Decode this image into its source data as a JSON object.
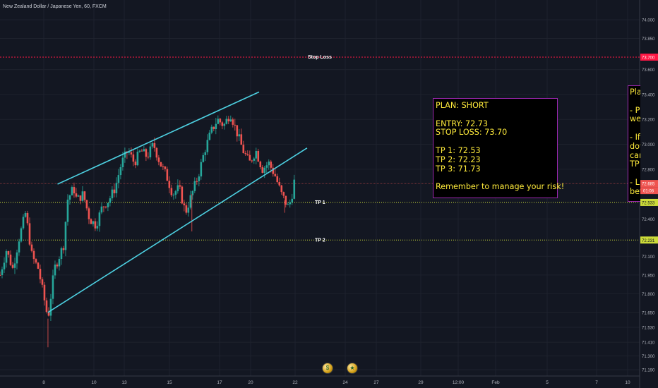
{
  "symbol_title": "New Zealand Dollar / Japanese Yen, 60, FXCM",
  "plan_text": {
    "lines": [
      "PLAN: SHORT",
      "",
      "ENTRY: 72.73",
      "STOP LOSS: 73.70",
      "",
      "TP 1: 72.53",
      "TP 2: 72.23",
      "TP 3: 71.73",
      "",
      "Remember to manage your risk!"
    ]
  },
  "plan_text_right": {
    "lines": [
      "Pla",
      "",
      "- P",
      "we",
      "",
      "- If",
      "dov",
      "car",
      "TP",
      "",
      "- L",
      "bef"
    ]
  },
  "event_icons": [
    "earnings-icon",
    "news-icon"
  ],
  "colors": {
    "background": "#131722",
    "up_candle": "#26a69a",
    "down_candle": "#ef5350",
    "trendline": "#4dd0e1",
    "stop_loss_line": "#ff1744",
    "tp_line": "#cddc39",
    "current_price_line": "#ef5350",
    "plan_text": "#ffeb3b",
    "plan_border": "#9c27b0"
  },
  "chart_data": {
    "type": "candlestick",
    "title": "New Zealand Dollar / Japanese Yen, 60, FXCM",
    "ylim": [
      71.19,
      74.0
    ],
    "y_ticks": [
      "74.000",
      "73.850",
      "73.700",
      "73.600",
      "73.400",
      "73.200",
      "73.000",
      "72.800",
      "72.685",
      "72.533",
      "72.400",
      "72.231",
      "72.100",
      "71.950",
      "71.800",
      "71.650",
      "71.530",
      "71.410",
      "71.300",
      "71.190"
    ],
    "x_ticks": [
      "8",
      "10",
      "13",
      "15",
      "17",
      "20",
      "22",
      "24",
      "27",
      "29",
      "12:00",
      "Feb",
      "5",
      "7",
      "10"
    ],
    "grid": true,
    "current_price": "72.685",
    "countdown": "01:08",
    "horizontal_lines": [
      {
        "label": "Stop Loss",
        "value": 73.7,
        "price_label": "73.700"
      },
      {
        "label": "TP 1",
        "value": 72.533,
        "price_label": "72.533"
      },
      {
        "label": "TP 2",
        "value": 72.231,
        "price_label": "72.231"
      }
    ],
    "trendlines": [
      {
        "name": "channel-top",
        "points": [
          [
            0.09,
            72.68
          ],
          [
            0.405,
            73.42
          ]
        ]
      },
      {
        "name": "channel-bottom",
        "points": [
          [
            0.075,
            71.65
          ],
          [
            0.48,
            72.97
          ]
        ]
      }
    ],
    "close_path": [
      [
        0.0,
        71.95
      ],
      [
        0.01,
        72.15
      ],
      [
        0.02,
        72.0
      ],
      [
        0.03,
        72.25
      ],
      [
        0.04,
        72.45
      ],
      [
        0.05,
        72.1
      ],
      [
        0.06,
        72.0
      ],
      [
        0.075,
        71.6
      ],
      [
        0.085,
        72.0
      ],
      [
        0.1,
        72.2
      ],
      [
        0.105,
        72.55
      ],
      [
        0.115,
        72.65
      ],
      [
        0.12,
        72.55
      ],
      [
        0.13,
        72.6
      ],
      [
        0.14,
        72.4
      ],
      [
        0.15,
        72.35
      ],
      [
        0.16,
        72.5
      ],
      [
        0.17,
        72.55
      ],
      [
        0.18,
        72.65
      ],
      [
        0.19,
        72.85
      ],
      [
        0.2,
        72.95
      ],
      [
        0.21,
        72.85
      ],
      [
        0.22,
        72.95
      ],
      [
        0.23,
        72.9
      ],
      [
        0.24,
        73.0
      ],
      [
        0.25,
        72.85
      ],
      [
        0.26,
        72.75
      ],
      [
        0.27,
        72.6
      ],
      [
        0.28,
        72.65
      ],
      [
        0.29,
        72.45
      ],
      [
        0.3,
        72.6
      ],
      [
        0.31,
        72.75
      ],
      [
        0.32,
        72.95
      ],
      [
        0.33,
        73.1
      ],
      [
        0.34,
        73.2
      ],
      [
        0.35,
        73.15
      ],
      [
        0.36,
        73.25
      ],
      [
        0.37,
        73.1
      ],
      [
        0.38,
        72.95
      ],
      [
        0.39,
        72.85
      ],
      [
        0.4,
        72.95
      ],
      [
        0.41,
        72.8
      ],
      [
        0.42,
        72.85
      ],
      [
        0.43,
        72.75
      ],
      [
        0.44,
        72.6
      ],
      [
        0.45,
        72.5
      ],
      [
        0.455,
        72.55
      ],
      [
        0.46,
        72.7
      ]
    ]
  }
}
